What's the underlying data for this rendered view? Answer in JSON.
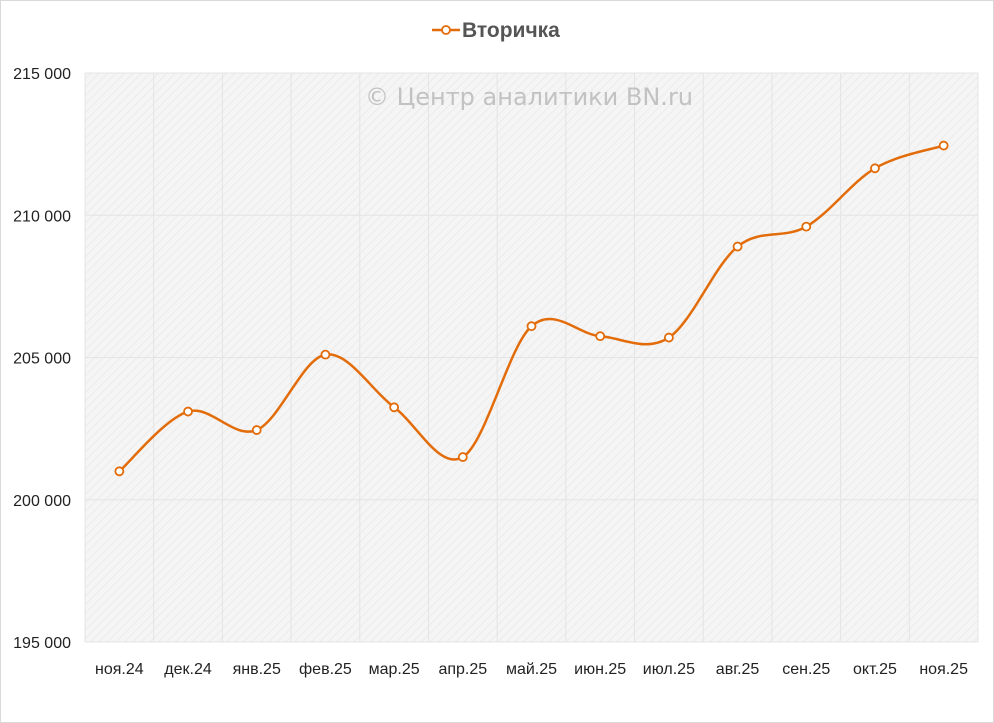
{
  "chart_data": {
    "type": "line",
    "title": "",
    "xlabel": "",
    "ylabel": "",
    "categories": [
      "ноя.24",
      "дек.24",
      "янв.25",
      "фев.25",
      "мар.25",
      "апр.25",
      "май.25",
      "июн.25",
      "июл.25",
      "авг.25",
      "сен.25",
      "окт.25",
      "ноя.25"
    ],
    "series": [
      {
        "name": "Вторичка",
        "values": [
          201000,
          203100,
          202450,
          205100,
          203250,
          201500,
          206100,
          205750,
          205700,
          208900,
          209600,
          211650,
          212450
        ]
      }
    ],
    "ylim": [
      195000,
      215000
    ],
    "yticks": [
      195000,
      200000,
      205000,
      210000,
      215000
    ],
    "ytick_labels": [
      "195 000",
      "200 000",
      "205 000",
      "210 000",
      "215 000"
    ],
    "grid": true,
    "legend_position": "top-center",
    "line_style": "smooth",
    "colors": {
      "series": "#E36C0A",
      "marker_fill": "#ffffff",
      "grid": "#e4e4e4",
      "plot_bg": "#f4f4f4"
    },
    "watermark": "© Центр аналитики BN.ru"
  }
}
